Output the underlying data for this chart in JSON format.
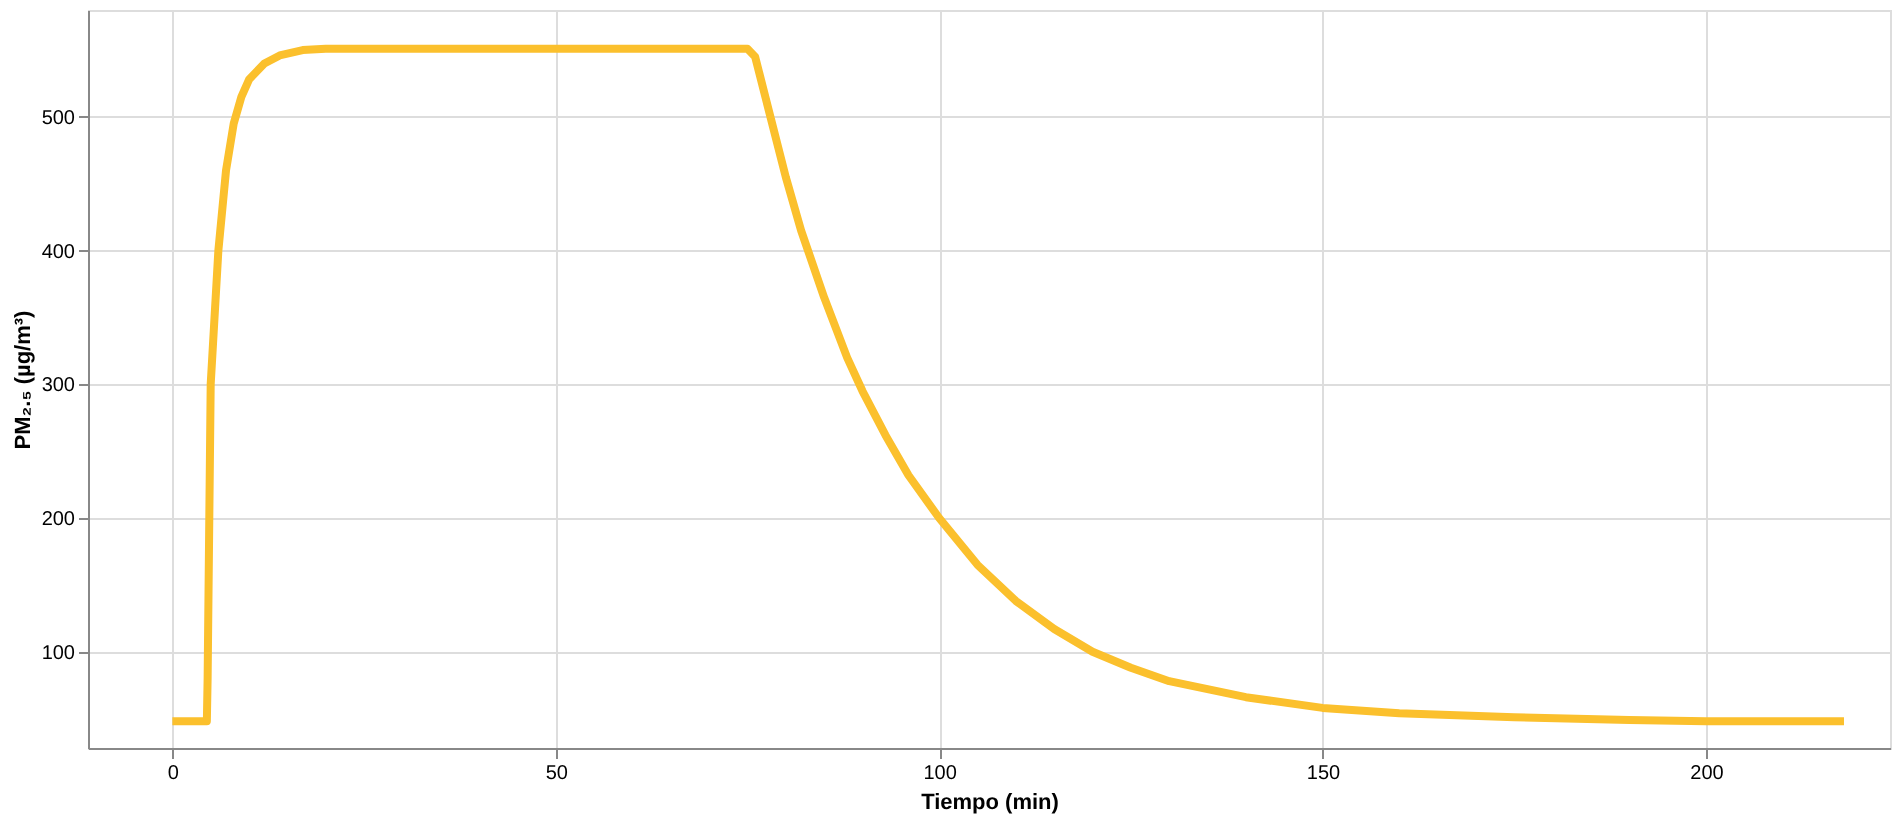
{
  "chart_data": {
    "type": "line",
    "xlabel": "Tiempo (min)",
    "ylabel": "PM₂.₅ (µg/m³)",
    "x": [
      0,
      4.5,
      4.6,
      5,
      6,
      7,
      8,
      9,
      10,
      12,
      14,
      17,
      20,
      30,
      50,
      75,
      76,
      78,
      80,
      82,
      85,
      88,
      90,
      93,
      96,
      100,
      105,
      110,
      115,
      120,
      125,
      130,
      140,
      150,
      160,
      175,
      190,
      200,
      218
    ],
    "series": [
      {
        "color": "#fbc02d",
        "values": [
          48,
          48,
          80,
          300,
          400,
          460,
          495,
          515,
          528,
          540,
          546,
          550,
          551,
          551,
          551,
          551,
          545,
          500,
          455,
          415,
          365,
          320,
          295,
          262,
          232,
          200,
          165,
          138,
          117,
          100,
          88,
          78,
          66,
          58,
          54,
          51,
          49,
          48,
          48
        ]
      }
    ],
    "xlim": [
      -11,
      224
    ],
    "xticks": [
      0,
      50,
      100,
      150,
      200
    ],
    "ylim": [
      28,
      580
    ],
    "yticks": [
      100,
      200,
      300,
      400,
      500
    ],
    "grid": true,
    "marker": "none",
    "line_style": "solid"
  }
}
